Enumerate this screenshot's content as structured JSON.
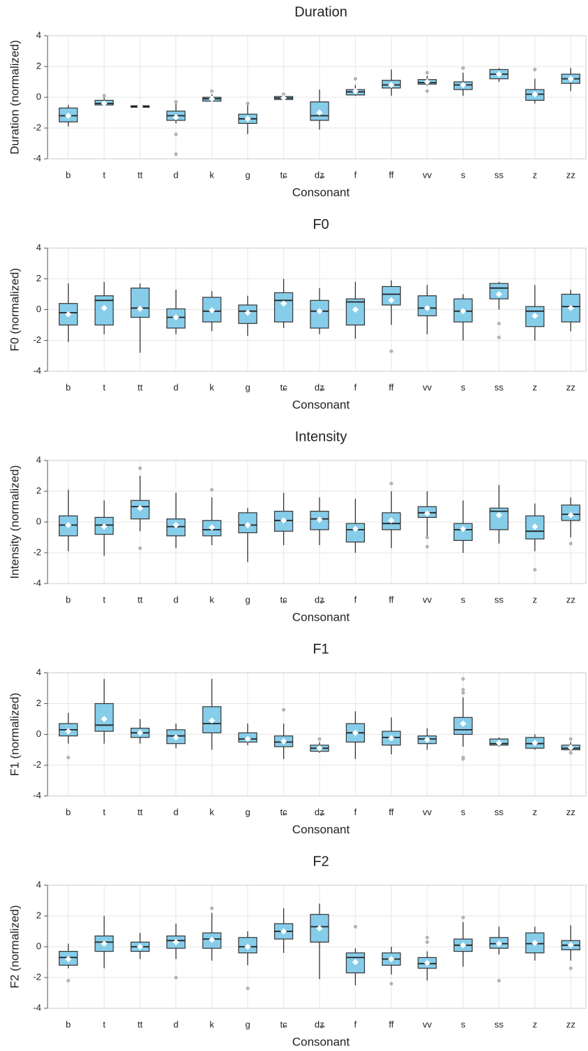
{
  "chart_data": [
    {
      "type": "box",
      "title": "Duration",
      "x_label": "Consonant",
      "y_label": "Duration (normalized)",
      "categories": [
        "b",
        "t",
        "tt",
        "d",
        "k",
        "g",
        "tɕ",
        "dʑ",
        "f",
        "ff",
        "vv",
        "s",
        "ss",
        "z",
        "zz"
      ],
      "whislo": [
        -1.9,
        -0.5,
        -0.7,
        -1.7,
        -0.3,
        -2.4,
        -0.2,
        -2.1,
        0.1,
        0.1,
        0.75,
        0.1,
        1.0,
        -0.4,
        0.4
      ],
      "q1": [
        -1.6,
        -0.5,
        -0.65,
        -1.5,
        -0.25,
        -1.7,
        -0.15,
        -1.5,
        0.15,
        0.6,
        0.85,
        0.5,
        1.2,
        -0.2,
        0.9
      ],
      "median": [
        -1.2,
        -0.4,
        -0.6,
        -1.2,
        -0.1,
        -1.4,
        -0.05,
        -1.2,
        0.35,
        0.8,
        0.95,
        0.8,
        1.5,
        0.2,
        1.2
      ],
      "q3": [
        -0.7,
        -0.2,
        -0.55,
        -0.9,
        0.0,
        -1.1,
        0.05,
        -0.3,
        0.5,
        1.1,
        1.15,
        1.0,
        1.8,
        0.5,
        1.5
      ],
      "whishi": [
        -0.5,
        0.0,
        -0.5,
        -0.4,
        0.2,
        -0.5,
        0.1,
        0.5,
        0.8,
        1.8,
        1.4,
        1.6,
        1.9,
        1.2,
        1.9
      ],
      "mean": [
        -1.2,
        -0.4,
        -0.6,
        -1.3,
        -0.1,
        -1.4,
        -0.05,
        -1.0,
        0.4,
        0.8,
        1.0,
        0.8,
        1.5,
        0.2,
        1.2
      ],
      "outliers": [
        [],
        [
          0.1
        ],
        [],
        [
          -2.4,
          -3.7,
          -0.3
        ],
        [
          0.4
        ],
        [
          -0.4
        ],
        [
          0.2
        ],
        [],
        [
          1.2
        ],
        [],
        [
          0.4,
          1.6
        ],
        [
          1.9
        ],
        [],
        [
          1.8
        ],
        []
      ],
      "ylim": [
        -4,
        4
      ],
      "yticks": [
        -4,
        -2,
        0,
        2,
        4
      ],
      "color": "#86cdea",
      "outlier_color": "#b4b4b4",
      "grid": true
    },
    {
      "type": "box",
      "title": "F0",
      "x_label": "Consonant",
      "y_label": "F0 (normalized)",
      "categories": [
        "b",
        "t",
        "tt",
        "d",
        "k",
        "g",
        "tɕ",
        "dʑ",
        "f",
        "ff",
        "vv",
        "s",
        "ss",
        "z",
        "zz"
      ],
      "whislo": [
        -2.1,
        -1.6,
        -2.8,
        -1.6,
        -1.4,
        -1.7,
        -1.2,
        -1.6,
        -1.9,
        -1.0,
        -1.6,
        -2.0,
        0.0,
        -2.0,
        -1.4
      ],
      "q1": [
        -1.0,
        -1.0,
        -0.5,
        -1.2,
        -0.8,
        -0.9,
        -0.8,
        -1.2,
        -1.0,
        0.3,
        -0.4,
        -0.8,
        0.7,
        -1.1,
        -0.8
      ],
      "median": [
        -0.2,
        0.6,
        0.1,
        -0.5,
        -0.1,
        -0.1,
        0.6,
        -0.1,
        0.5,
        1.0,
        0.1,
        -0.1,
        1.4,
        -0.1,
        0.2
      ],
      "q3": [
        0.4,
        0.9,
        1.4,
        0.05,
        0.8,
        0.3,
        1.1,
        0.6,
        0.7,
        1.5,
        0.9,
        0.7,
        1.7,
        0.2,
        1.0
      ],
      "whishi": [
        1.7,
        1.8,
        1.7,
        1.3,
        1.2,
        0.9,
        2.0,
        1.4,
        1.8,
        1.9,
        1.6,
        1.0,
        1.8,
        1.6,
        1.3
      ],
      "mean": [
        -0.3,
        0.1,
        0.05,
        -0.5,
        -0.05,
        -0.2,
        0.4,
        -0.1,
        0.0,
        0.6,
        0.1,
        -0.1,
        1.0,
        -0.4,
        0.1
      ],
      "outliers": [
        [],
        [],
        [],
        [],
        [],
        [],
        [],
        [],
        [],
        [
          -2.7
        ],
        [],
        [],
        [
          -0.9,
          -1.8
        ],
        [],
        []
      ],
      "ylim": [
        -4,
        4
      ],
      "yticks": [
        -4,
        -2,
        0,
        2,
        4
      ],
      "color": "#86cdea",
      "outlier_color": "#b4b4b4",
      "grid": true
    },
    {
      "type": "box",
      "title": "Intensity",
      "x_label": "Consonant",
      "y_label": "Intensity (normalized)",
      "categories": [
        "b",
        "t",
        "tt",
        "d",
        "k",
        "g",
        "tɕ",
        "dʑ",
        "f",
        "ff",
        "vv",
        "s",
        "ss",
        "z",
        "zz"
      ],
      "whislo": [
        -1.9,
        -2.2,
        -0.6,
        -1.7,
        -1.5,
        -2.6,
        -1.5,
        -1.5,
        -2.0,
        -1.7,
        -0.9,
        -2.0,
        -1.4,
        -1.9,
        -1.0
      ],
      "q1": [
        -0.9,
        -0.8,
        0.2,
        -0.9,
        -0.9,
        -0.7,
        -0.6,
        -0.5,
        -1.3,
        -0.5,
        0.3,
        -1.2,
        -0.5,
        -1.1,
        0.1
      ],
      "median": [
        -0.2,
        -0.2,
        1.0,
        -0.3,
        -0.5,
        -0.2,
        0.1,
        0.2,
        -0.5,
        -0.1,
        0.6,
        -0.5,
        0.7,
        -0.6,
        0.5
      ],
      "q3": [
        0.4,
        0.3,
        1.4,
        0.2,
        0.1,
        0.6,
        0.7,
        0.7,
        -0.1,
        0.6,
        1.0,
        -0.1,
        0.9,
        0.4,
        1.1
      ],
      "whishi": [
        2.1,
        1.4,
        3.0,
        1.9,
        1.6,
        0.9,
        1.9,
        1.6,
        1.5,
        2.0,
        2.0,
        1.4,
        2.4,
        1.2,
        1.6
      ],
      "mean": [
        -0.2,
        -0.3,
        0.9,
        -0.2,
        -0.35,
        -0.2,
        0.1,
        0.15,
        -0.45,
        0.1,
        0.55,
        -0.45,
        0.45,
        -0.3,
        0.45
      ],
      "outliers": [
        [],
        [],
        [
          3.5,
          -1.7
        ],
        [],
        [
          2.1
        ],
        [],
        [],
        [],
        [],
        [
          2.5
        ],
        [
          -1.0,
          -1.6
        ],
        [],
        [],
        [
          -3.1
        ],
        [
          -1.4
        ]
      ],
      "ylim": [
        -4,
        4
      ],
      "yticks": [
        -4,
        -2,
        0,
        2,
        4
      ],
      "color": "#86cdea",
      "outlier_color": "#b4b4b4",
      "grid": true
    },
    {
      "type": "box",
      "title": "F1",
      "x_label": "Consonant",
      "y_label": "F1 (normalized)",
      "categories": [
        "b",
        "t",
        "tt",
        "d",
        "k",
        "g",
        "tɕ",
        "dʑ",
        "f",
        "ff",
        "vv",
        "s",
        "ss",
        "z",
        "zz"
      ],
      "whislo": [
        -0.6,
        -0.6,
        -0.6,
        -0.9,
        -1.0,
        -0.7,
        -1.6,
        -1.2,
        -1.6,
        -1.3,
        -1.0,
        -0.8,
        -0.8,
        -1.0,
        -1.1
      ],
      "q1": [
        -0.1,
        0.2,
        -0.2,
        -0.6,
        0.1,
        -0.5,
        -0.8,
        -1.1,
        -0.5,
        -0.7,
        -0.6,
        0.0,
        -0.7,
        -0.9,
        -1.0
      ],
      "median": [
        0.3,
        0.6,
        0.1,
        -0.1,
        0.7,
        -0.3,
        -0.5,
        -0.9,
        0.1,
        -0.2,
        -0.3,
        0.3,
        -0.6,
        -0.6,
        -0.9
      ],
      "q3": [
        0.7,
        2.0,
        0.4,
        0.3,
        1.8,
        0.1,
        -0.1,
        -0.7,
        0.7,
        0.2,
        -0.1,
        1.1,
        -0.3,
        -0.2,
        -0.7
      ],
      "whishi": [
        1.4,
        3.6,
        1.0,
        0.7,
        3.6,
        0.7,
        0.7,
        -0.5,
        1.5,
        1.1,
        0.4,
        2.4,
        -0.2,
        0.0,
        -0.5
      ],
      "mean": [
        0.2,
        1.0,
        0.1,
        -0.2,
        0.9,
        -0.3,
        -0.45,
        -0.9,
        0.1,
        -0.25,
        -0.35,
        0.7,
        -0.55,
        -0.55,
        -0.85
      ],
      "outliers": [
        [
          -1.5
        ],
        [],
        [],
        [],
        [],
        [],
        [
          1.6
        ],
        [
          -0.3
        ],
        [],
        [],
        [],
        [
          2.7,
          2.9,
          3.6,
          -1.5,
          -1.6
        ],
        [],
        [],
        [
          -1.2,
          -0.3
        ]
      ],
      "ylim": [
        -4,
        4
      ],
      "yticks": [
        -4,
        -2,
        0,
        2,
        4
      ],
      "color": "#86cdea",
      "outlier_color": "#b4b4b4",
      "grid": true
    },
    {
      "type": "box",
      "title": "F2",
      "x_label": "Consonant",
      "y_label": "F2 (normalized)",
      "categories": [
        "b",
        "t",
        "tt",
        "d",
        "k",
        "g",
        "tɕ",
        "dʑ",
        "f",
        "ff",
        "vv",
        "s",
        "ss",
        "z",
        "zz"
      ],
      "whislo": [
        -1.4,
        -1.4,
        -0.8,
        -0.8,
        -0.9,
        -1.2,
        -0.4,
        -2.1,
        -2.5,
        -1.8,
        -2.2,
        -1.3,
        -0.5,
        -0.9,
        -0.9
      ],
      "q1": [
        -1.2,
        -0.3,
        -0.3,
        -0.1,
        -0.1,
        -0.4,
        0.5,
        0.3,
        -1.7,
        -1.2,
        -1.4,
        -0.3,
        -0.1,
        -0.4,
        -0.2
      ],
      "median": [
        -0.7,
        0.3,
        0.0,
        0.4,
        0.5,
        0.0,
        1.0,
        1.3,
        -0.7,
        -0.8,
        -1.1,
        0.1,
        0.2,
        0.2,
        0.1
      ],
      "q3": [
        -0.3,
        0.7,
        0.3,
        0.7,
        0.9,
        0.6,
        1.5,
        2.1,
        -0.4,
        -0.4,
        -0.7,
        0.5,
        0.6,
        0.9,
        0.4
      ],
      "whishi": [
        0.2,
        2.0,
        0.9,
        1.5,
        2.2,
        1.0,
        2.5,
        2.8,
        -0.1,
        0.0,
        -0.3,
        1.6,
        1.3,
        1.3,
        1.4
      ],
      "mean": [
        -0.8,
        0.2,
        0.0,
        0.3,
        0.45,
        0.0,
        1.0,
        1.2,
        -1.0,
        -0.8,
        -1.05,
        0.1,
        0.2,
        0.25,
        0.1
      ],
      "outliers": [
        [
          -2.2
        ],
        [],
        [],
        [
          -2.0
        ],
        [
          2.5
        ],
        [
          -2.7
        ],
        [],
        [],
        [
          1.3
        ],
        [
          -2.4
        ],
        [
          0.3,
          0.6
        ],
        [
          1.9
        ],
        [
          -2.2
        ],
        [],
        [
          -1.4
        ]
      ],
      "ylim": [
        -4,
        4
      ],
      "yticks": [
        -4,
        -2,
        0,
        2,
        4
      ],
      "color": "#86cdea",
      "outlier_color": "#b4b4b4",
      "grid": true
    }
  ]
}
